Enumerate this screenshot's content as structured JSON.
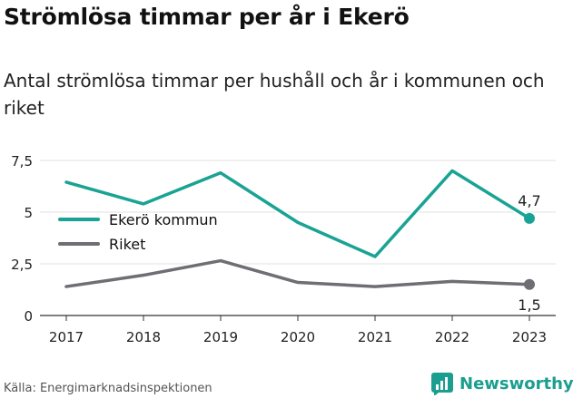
{
  "title": "Strömlösa timmar per år i Ekerö",
  "subtitle": "Antal strömlösa timmar per hushåll och år i kommunen och riket",
  "source": "Källa: Energimarknadsinspektionen",
  "brand": "Newsworthy",
  "brand_icon": "newsworthy-logo-icon",
  "chart_data": {
    "type": "line",
    "x": [
      "2017",
      "2018",
      "2019",
      "2020",
      "2021",
      "2022",
      "2023"
    ],
    "ylim": [
      0,
      7.5
    ],
    "yticks": [
      0,
      2.5,
      5,
      7.5
    ],
    "ytick_labels": [
      "0",
      "2,5",
      "5",
      "7,5"
    ],
    "grid": true,
    "legend": "upper-left",
    "series": [
      {
        "name": "Ekerö kommun",
        "color": "#1aa394",
        "values": [
          6.45,
          5.4,
          6.9,
          4.5,
          2.85,
          7.0,
          4.7
        ],
        "end_label": "4,7"
      },
      {
        "name": "Riket",
        "color": "#6e6e73",
        "values": [
          1.4,
          1.95,
          2.65,
          1.6,
          1.4,
          1.65,
          1.5
        ],
        "end_label": "1,5"
      }
    ]
  }
}
